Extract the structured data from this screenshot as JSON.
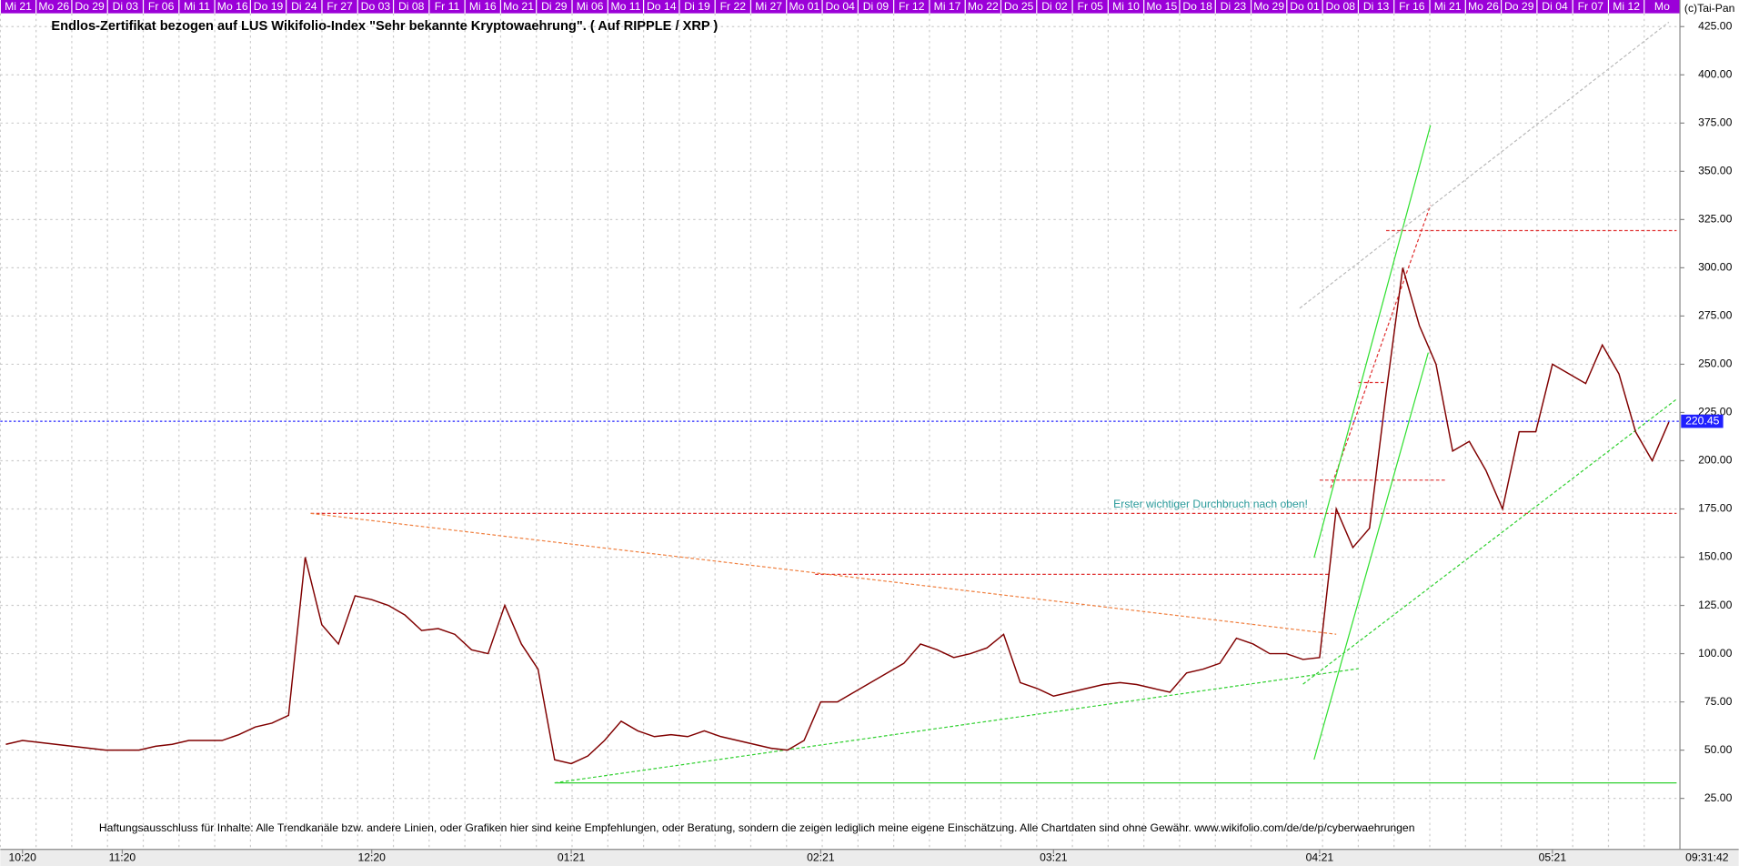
{
  "chart_data": {
    "type": "line",
    "title": "Endlos-Zertifikat bezogen auf LUS Wikifolio-Index \"Sehr bekannte Kryptowaehrung\". ( Auf RIPPLE / XRP )",
    "copyright": "(c)Tai-Pan",
    "time": "09:31:42",
    "annotation": "Erster wichtiger Durchbruch nach oben!",
    "disclaimer": "Haftungsausschluss für Inhalte: Alle Trendkanäle bzw. andere Linien, oder Grafiken hier sind keine Empfehlungen, oder Beratung, sondern die zeigen lediglich meine eigene Einschätzung. Alle Chartdaten sind ohne Gewähr.  www.wikifolio.com/de/de/p/cyberwaehrungen",
    "top_labels": [
      "Mi 21",
      "Mo 26",
      "Do 29",
      "Di 03",
      "Fr 06",
      "Mi 11",
      "Mo 16",
      "Do 19",
      "Di 24",
      "Fr 27",
      "Do 03",
      "Di 08",
      "Fr 11",
      "Mi 16",
      "Mo 21",
      "Di 29",
      "Mi 06",
      "Mo 11",
      "Do 14",
      "Di 19",
      "Fr 22",
      "Mi 27",
      "Mo 01",
      "Do 04",
      "Di 09",
      "Fr 12",
      "Mi 17",
      "Mo 22",
      "Do 25",
      "Di 02",
      "Fr 05",
      "Mi 10",
      "Mo 15",
      "Do 18",
      "Di 23",
      "Mo 29",
      "Do 01",
      "Do 08",
      "Di 13",
      "Fr 16",
      "Mi 21",
      "Mo 26",
      "Do 29",
      "Di 04",
      "Fr 07",
      "Mi 12",
      "Mo"
    ],
    "categories": [
      null,
      "10:20",
      null,
      null,
      null,
      null,
      null,
      "11:20",
      null,
      null,
      null,
      null,
      null,
      null,
      null,
      null,
      null,
      null,
      null,
      null,
      null,
      null,
      "12:20",
      null,
      null,
      null,
      null,
      null,
      null,
      null,
      null,
      null,
      null,
      null,
      "01:21",
      null,
      null,
      null,
      null,
      null,
      null,
      null,
      null,
      null,
      null,
      null,
      null,
      null,
      null,
      "02:21",
      null,
      null,
      null,
      null,
      null,
      null,
      null,
      null,
      null,
      null,
      null,
      null,
      null,
      "03:21",
      null,
      null,
      null,
      null,
      null,
      null,
      null,
      null,
      null,
      null,
      null,
      null,
      null,
      null,
      null,
      "04:21",
      null,
      null,
      null,
      null,
      null,
      null,
      null,
      null,
      null,
      null,
      null,
      null,
      null,
      "05:21",
      null,
      null,
      null,
      null,
      null,
      null,
      null
    ],
    "series": [
      {
        "name": "XRP",
        "color": "#800000",
        "values": [
          53,
          55,
          54,
          53,
          52,
          51,
          50,
          50,
          50,
          52,
          53,
          55,
          55,
          55,
          58,
          62,
          64,
          68,
          150,
          115,
          105,
          130,
          128,
          125,
          120,
          112,
          113,
          110,
          102,
          100,
          125,
          105,
          92,
          45,
          43,
          47,
          55,
          65,
          60,
          57,
          58,
          57,
          60,
          57,
          55,
          53,
          51,
          50,
          55,
          75,
          75,
          80,
          85,
          90,
          95,
          105,
          102,
          98,
          100,
          103,
          110,
          85,
          82,
          78,
          80,
          82,
          84,
          85,
          84,
          82,
          80,
          90,
          92,
          95,
          108,
          105,
          100,
          100,
          97,
          98,
          175,
          155,
          165,
          235,
          300,
          270,
          250,
          205,
          210,
          195,
          175,
          215,
          215,
          250,
          245,
          240,
          260,
          245,
          215,
          200,
          220
        ]
      }
    ],
    "last_price": 220.45,
    "ylim": [
      25,
      425
    ],
    "yticks": [
      {
        "value": 25,
        "label": "25.00"
      },
      {
        "value": 50,
        "label": "50.00"
      },
      {
        "value": 75,
        "label": "75.00"
      },
      {
        "value": 100,
        "label": "100.00"
      },
      {
        "value": 125,
        "label": "125.00"
      },
      {
        "value": 150,
        "label": "150.00"
      },
      {
        "value": 175,
        "label": "175.00"
      },
      {
        "value": 200,
        "label": "200.00"
      },
      {
        "value": 225,
        "label": "225.00"
      },
      {
        "value": 250,
        "label": "250.00"
      },
      {
        "value": 275,
        "label": "275.00"
      },
      {
        "value": 300,
        "label": "300.00"
      },
      {
        "value": 325,
        "label": "325.00"
      },
      {
        "value": 350,
        "label": "350.00"
      },
      {
        "value": 375,
        "label": "375.00"
      },
      {
        "value": 400,
        "label": "400.00"
      },
      {
        "value": 425,
        "label": "425.00"
      }
    ],
    "grid": true
  }
}
